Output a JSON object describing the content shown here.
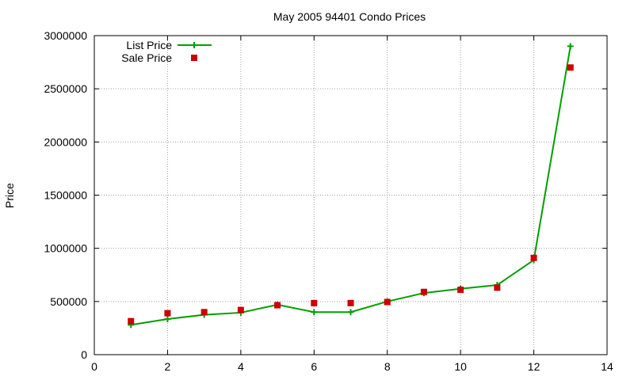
{
  "chart_data": {
    "type": "line",
    "title": "May 2005 94401 Condo Prices",
    "xlabel": "",
    "ylabel": "Price",
    "xlim": [
      0,
      14
    ],
    "ylim": [
      0,
      3000000
    ],
    "xticks": [
      0,
      2,
      4,
      6,
      8,
      10,
      12,
      14
    ],
    "yticks": [
      0,
      500000,
      1000000,
      1500000,
      2000000,
      2500000,
      3000000
    ],
    "grid": true,
    "legend_position": "top-left",
    "series": [
      {
        "name": "List Price",
        "style": "line-plus",
        "color": "#00a000",
        "points": [
          [
            1,
            280000
          ],
          [
            2,
            335000
          ],
          [
            3,
            375000
          ],
          [
            4,
            395000
          ],
          [
            5,
            470000
          ],
          [
            6,
            400000
          ],
          [
            7,
            400000
          ],
          [
            8,
            500000
          ],
          [
            9,
            580000
          ],
          [
            10,
            620000
          ],
          [
            11,
            655000
          ],
          [
            12,
            890000
          ],
          [
            13,
            2900000
          ]
        ]
      },
      {
        "name": "Sale Price",
        "style": "square",
        "color": "#cc0000",
        "points": [
          [
            1,
            315000
          ],
          [
            2,
            390000
          ],
          [
            3,
            400000
          ],
          [
            4,
            420000
          ],
          [
            5,
            465000
          ],
          [
            6,
            485000
          ],
          [
            7,
            485000
          ],
          [
            8,
            495000
          ],
          [
            9,
            590000
          ],
          [
            10,
            610000
          ],
          [
            11,
            630000
          ],
          [
            12,
            910000
          ],
          [
            13,
            2700000
          ]
        ]
      }
    ]
  }
}
